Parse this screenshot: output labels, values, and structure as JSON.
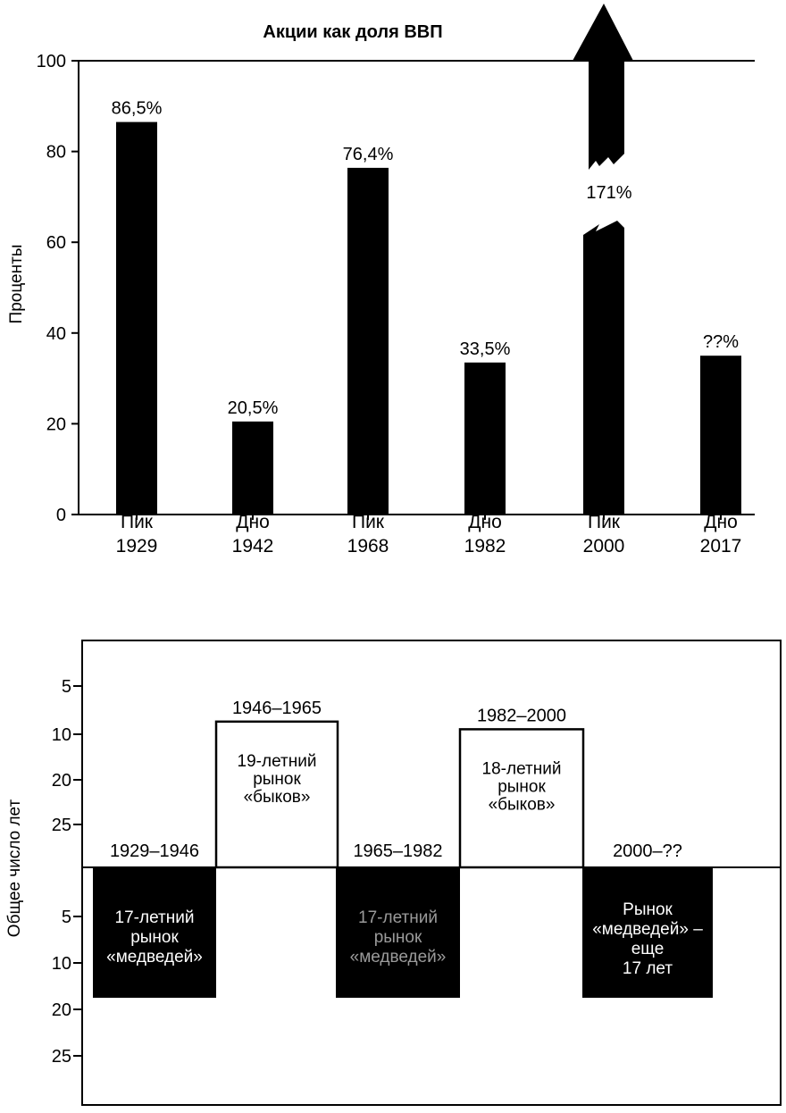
{
  "chart_data": [
    {
      "type": "bar",
      "title": "Акции как доля ВВП",
      "ylabel": "Проценты",
      "xlabel": "",
      "ylim": [
        0,
        100
      ],
      "yticks": [
        "0",
        "20",
        "40",
        "60",
        "80",
        "100"
      ],
      "grid": false,
      "categories": [
        {
          "line1": "Пик",
          "line2": "1929"
        },
        {
          "line1": "Дно",
          "line2": "1942"
        },
        {
          "line1": "Пик",
          "line2": "1968"
        },
        {
          "line1": "Дно",
          "line2": "1982"
        },
        {
          "line1": "Пик",
          "line2": "2000"
        },
        {
          "line1": "Дно",
          "line2": "2017"
        }
      ],
      "values": [
        86.5,
        20.5,
        76.4,
        33.5,
        171,
        35
      ],
      "data_labels": [
        "86,5%",
        "20,5%",
        "76,4%",
        "33,5%",
        "171%",
        "??%"
      ],
      "bar_color": "#000000",
      "annotations": [
        "bar for 2000 exceeds the axis (broken bar with upward arrow)"
      ]
    },
    {
      "type": "bar",
      "ylabel": "Общее число лет",
      "yticks_up": [
        "5",
        "10",
        "20",
        "25"
      ],
      "yticks_down": [
        "5",
        "10",
        "20",
        "25"
      ],
      "periods": [
        {
          "range": "1929–1946",
          "years": 17,
          "kind": "bear",
          "lines": [
            "17-летний",
            "рынок",
            "«медведей»"
          ]
        },
        {
          "range": "1946–1965",
          "years": 19,
          "kind": "bull",
          "lines": [
            "19-летний",
            "рынок",
            "«быков»"
          ]
        },
        {
          "range": "1965–1982",
          "years": 17,
          "kind": "bear",
          "lines": [
            "17-летний",
            "рынок",
            "«медведей»"
          ]
        },
        {
          "range": "1982–2000",
          "years": 18,
          "kind": "bull",
          "lines": [
            "18-летний",
            "рынок",
            "«быков»"
          ]
        },
        {
          "range": "2000–??",
          "years": 17,
          "kind": "bear",
          "lines": [
            "Рынок",
            "«медведей» –",
            "еще",
            "17 лет"
          ]
        }
      ]
    }
  ]
}
